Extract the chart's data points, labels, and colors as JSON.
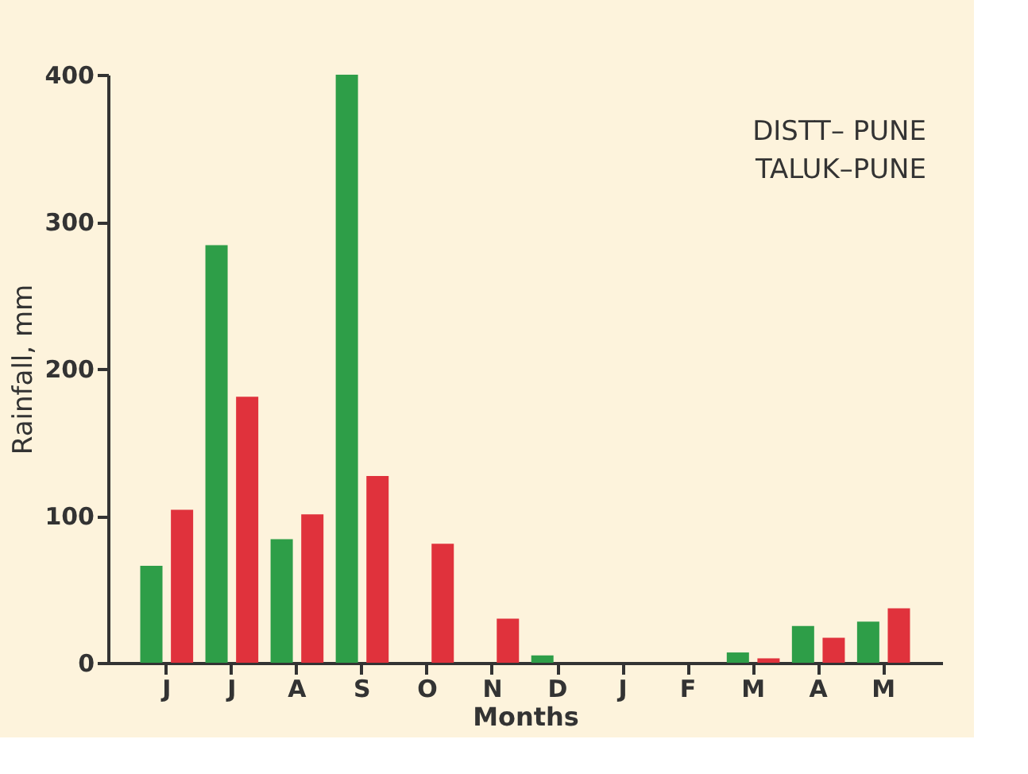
{
  "chart_data": {
    "type": "bar",
    "xlabel": "Months",
    "ylabel": "Rainfall, mm",
    "categories": [
      "J",
      "J",
      "A",
      "S",
      "O",
      "N",
      "D",
      "J",
      "F",
      "M",
      "A",
      "M"
    ],
    "series": [
      {
        "color": "#2e9e48",
        "values": [
          66,
          284,
          84,
          400,
          0,
          0,
          5,
          0,
          0,
          7,
          25,
          28
        ]
      },
      {
        "color": "#e0323c",
        "values": [
          104,
          181,
          101,
          127,
          81,
          30,
          0,
          0,
          0,
          3,
          17,
          37
        ]
      }
    ],
    "ylim": [
      0,
      400
    ],
    "yticks": [
      0,
      100,
      200,
      300,
      400
    ],
    "grid": false,
    "legend": false,
    "annotations": [
      "DISTT– PUNE",
      "TALUK–PUNE"
    ]
  }
}
